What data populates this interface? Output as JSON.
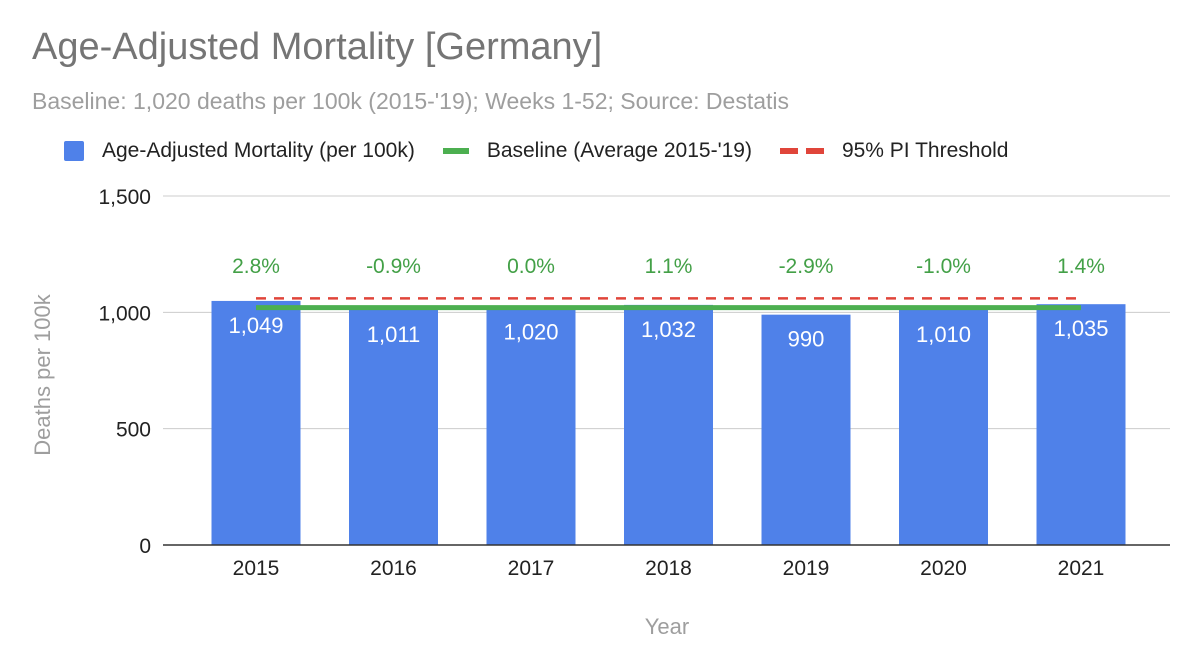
{
  "chart_data": {
    "type": "bar",
    "title": "Age-Adjusted Mortality [Germany]",
    "subtitle": "Baseline: 1,020 deaths per 100k (2015-'19); Weeks 1-52; Source: Destatis",
    "xlabel": "Year",
    "ylabel": "Deaths per 100k",
    "ylim": [
      0,
      1500
    ],
    "yticks": [
      0,
      500,
      1000,
      1500
    ],
    "ytick_labels": [
      "0",
      "500",
      "1,000",
      "1,500"
    ],
    "categories": [
      "2015",
      "2016",
      "2017",
      "2018",
      "2019",
      "2020",
      "2021"
    ],
    "series": [
      {
        "name": "Age-Adjusted Mortality (per 100k)",
        "type": "bar",
        "color": "#4f81e9",
        "values": [
          1049,
          1011,
          1020,
          1032,
          990,
          1010,
          1035
        ],
        "labels": [
          "1,049",
          "1,011",
          "1,020",
          "1,032",
          "990",
          "1,010",
          "1,035"
        ]
      },
      {
        "name": "Baseline (Average 2015-'19)",
        "type": "line",
        "color": "#4caf50",
        "values": [
          1020,
          1020,
          1020,
          1020,
          1020,
          1020,
          1020
        ]
      },
      {
        "name": "95% PI Threshold",
        "type": "dashed-line",
        "color": "#e0453a",
        "values": [
          1060,
          1060,
          1060,
          1060,
          1060,
          1060,
          1060
        ]
      }
    ],
    "annotations": {
      "color": "#43a047",
      "labels": [
        "2.8%",
        "-0.9%",
        "0.0%",
        "1.1%",
        "-2.9%",
        "-1.0%",
        "1.4%"
      ]
    },
    "grid": true,
    "legend_position": "top"
  }
}
